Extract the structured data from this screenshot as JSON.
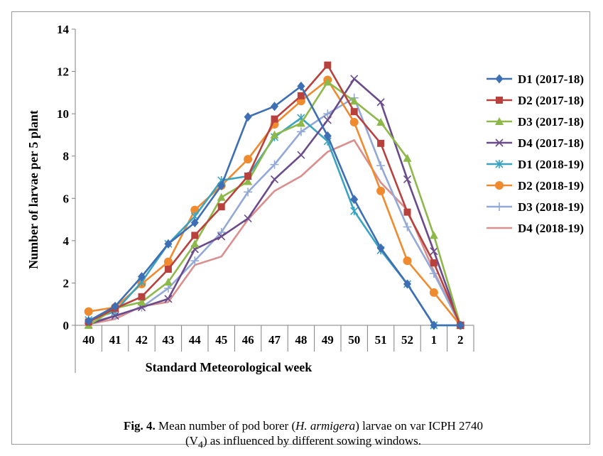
{
  "chart_data": {
    "type": "line",
    "title": "",
    "xlabel": "Standard Meteorological week",
    "ylabel": "Number of larvae per 5 plant",
    "categories": [
      "40",
      "41",
      "42",
      "43",
      "44",
      "45",
      "46",
      "47",
      "48",
      "49",
      "50",
      "51",
      "52",
      "1",
      "2"
    ],
    "ylim": [
      0,
      14
    ],
    "yticks": [
      "0",
      "2",
      "4",
      "6",
      "8",
      "10",
      "12",
      "14"
    ],
    "grid": false,
    "legend_position": "right",
    "series": [
      {
        "name": "D1 (2017-18)",
        "color": "#3e6eb3",
        "marker": "diamond",
        "values": [
          0.2,
          0.9,
          2.3,
          3.85,
          4.85,
          6.6,
          9.85,
          10.35,
          11.3,
          8.95,
          5.95,
          3.65,
          1.95,
          0,
          0
        ]
      },
      {
        "name": "D2 (2017-18)",
        "color": "#b8413e",
        "marker": "square",
        "values": [
          0.15,
          0.8,
          1.35,
          2.65,
          4.25,
          5.6,
          7.05,
          9.75,
          10.85,
          12.3,
          10.1,
          8.6,
          5.35,
          2.95,
          0
        ]
      },
      {
        "name": "D3 (2017-18)",
        "color": "#8db84a",
        "marker": "triangle",
        "values": [
          0,
          0.8,
          1.1,
          2.05,
          3.85,
          6.05,
          6.8,
          9.0,
          9.55,
          11.5,
          10.6,
          9.6,
          7.9,
          4.25,
          0
        ]
      },
      {
        "name": "D4 (2017-18)",
        "color": "#6b4a8b",
        "marker": "x",
        "values": [
          0.05,
          0.45,
          0.85,
          1.25,
          3.6,
          4.2,
          5.05,
          6.9,
          8.05,
          9.7,
          11.65,
          10.55,
          6.9,
          3.5,
          0
        ]
      },
      {
        "name": "D1 (2018-19)",
        "color": "#3aa3c0",
        "marker": "star",
        "values": [
          0.25,
          0.65,
          2.05,
          3.85,
          5.15,
          6.85,
          7.05,
          8.9,
          9.8,
          8.7,
          5.4,
          3.55,
          1.95,
          0,
          0
        ]
      },
      {
        "name": "D2 (2018-19)",
        "color": "#ef8a2f",
        "marker": "circle",
        "values": [
          0.65,
          0.85,
          1.95,
          3.0,
          5.45,
          6.6,
          7.85,
          9.5,
          10.6,
          11.6,
          9.6,
          6.35,
          3.05,
          1.55,
          0
        ]
      },
      {
        "name": "D3 (2018-19)",
        "color": "#92a9d8",
        "marker": "plus",
        "values": [
          0.1,
          0.45,
          0.85,
          1.75,
          3.05,
          4.4,
          6.3,
          7.6,
          9.15,
          10.0,
          10.75,
          7.55,
          4.65,
          2.45,
          0
        ]
      },
      {
        "name": "D4 (2018-19)",
        "color": "#d98f8e",
        "marker": "none",
        "values": [
          0.05,
          0.3,
          0.9,
          1.1,
          2.85,
          3.25,
          5.0,
          6.35,
          7.05,
          8.2,
          8.75,
          6.75,
          5.45,
          2.55,
          0
        ]
      }
    ]
  },
  "caption": {
    "fig_label": "Fig. 4.",
    "text_before_italic": " Mean number of pod borer (",
    "italic": "H. armigera",
    "text_after_italic": ") larvae on  var ICPH 2740",
    "line2_before": "(V",
    "line2_sub": "4",
    "line2_after": ") as influenced by different sowing windows."
  }
}
